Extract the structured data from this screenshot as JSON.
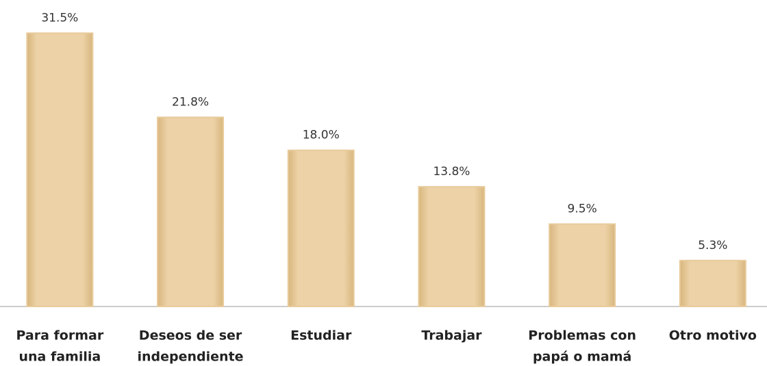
{
  "chart_data": {
    "type": "bar",
    "categories": [
      [
        "Para formar",
        "una familia"
      ],
      [
        "Deseos de ser",
        "independiente"
      ],
      [
        "Estudiar"
      ],
      [
        "Trabajar"
      ],
      [
        "Problemas con",
        "papá o mamá"
      ],
      [
        "Otro motivo"
      ]
    ],
    "values": [
      31.5,
      21.8,
      18.0,
      13.8,
      9.5,
      5.3
    ],
    "value_labels": [
      "31.5%",
      "21.8%",
      "18.0%",
      "13.8%",
      "9.5%",
      "5.3%"
    ],
    "color": "#e8cb9c",
    "ylim": [
      0,
      35
    ]
  }
}
